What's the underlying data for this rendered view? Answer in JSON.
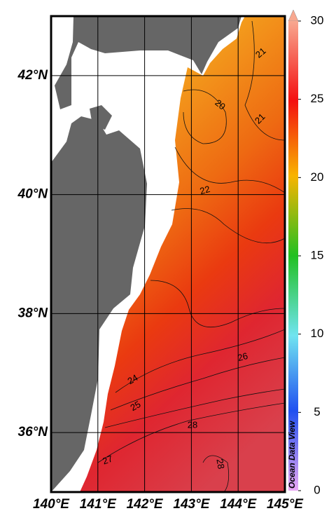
{
  "map": {
    "lonlim": [
      140,
      145
    ],
    "latlim": [
      35,
      43
    ],
    "lon_ticks": [
      {
        "value": 140,
        "label": "140°E"
      },
      {
        "value": 141,
        "label": "141°E"
      },
      {
        "value": 142,
        "label": "142°E"
      },
      {
        "value": 143,
        "label": "143°E"
      },
      {
        "value": 144,
        "label": "144°E"
      },
      {
        "value": 145,
        "label": "145°E"
      }
    ],
    "lat_ticks": [
      {
        "value": 36,
        "label": "36°N"
      },
      {
        "value": 38,
        "label": "38°N"
      },
      {
        "value": 40,
        "label": "40°N"
      },
      {
        "value": 42,
        "label": "42°N"
      }
    ],
    "colorbar": {
      "lim": [
        0,
        30
      ],
      "ticks": [
        0,
        5,
        10,
        15,
        20,
        25,
        30
      ]
    },
    "contour_labels": [
      21,
      20,
      21,
      22,
      24,
      25,
      26,
      27,
      28,
      28
    ],
    "watermark": "Ocean Data View"
  }
}
